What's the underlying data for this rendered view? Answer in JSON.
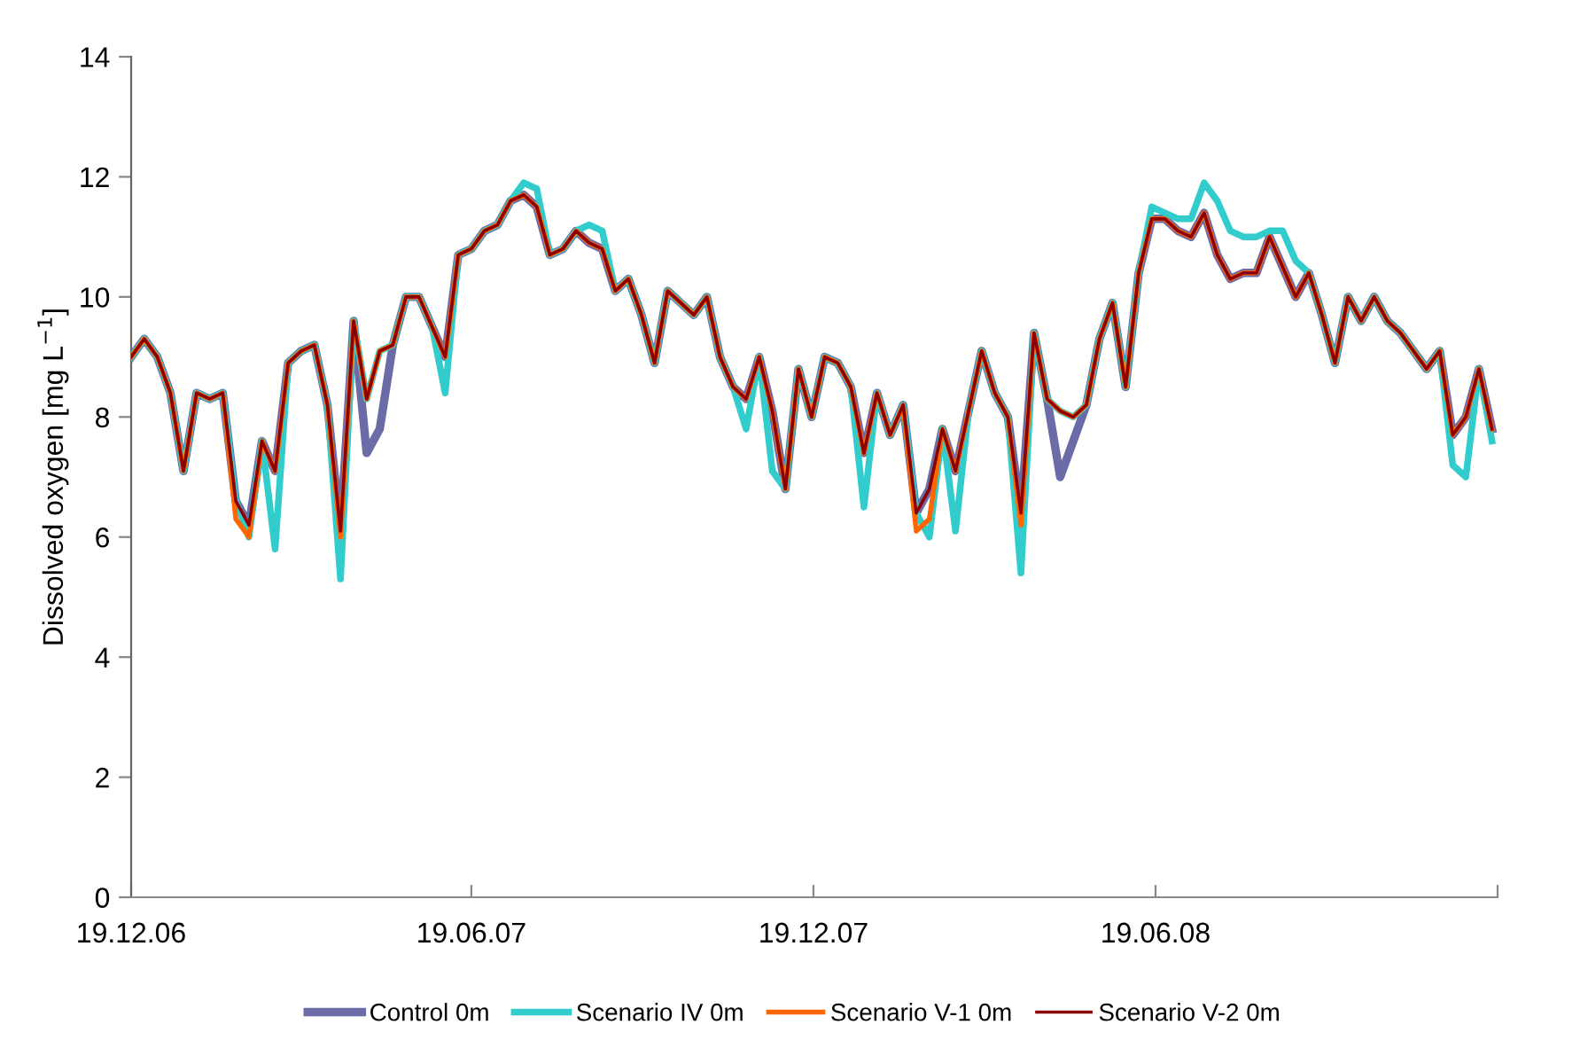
{
  "chart_data": {
    "type": "line",
    "ylabel": "Dissolved oxygen [mg L$^{−1}$]",
    "x": [
      "2006-12-19",
      "2006-12-26",
      "2007-01-02",
      "2007-01-09",
      "2007-01-16",
      "2007-01-23",
      "2007-01-30",
      "2007-02-06",
      "2007-02-13",
      "2007-02-20",
      "2007-02-27",
      "2007-03-06",
      "2007-03-13",
      "2007-03-20",
      "2007-03-27",
      "2007-04-03",
      "2007-04-10",
      "2007-04-17",
      "2007-04-24",
      "2007-05-01",
      "2007-05-08",
      "2007-05-15",
      "2007-05-22",
      "2007-05-29",
      "2007-06-05",
      "2007-06-12",
      "2007-06-19",
      "2007-06-26",
      "2007-07-03",
      "2007-07-10",
      "2007-07-17",
      "2007-07-24",
      "2007-07-31",
      "2007-08-07",
      "2007-08-14",
      "2007-08-21",
      "2007-08-28",
      "2007-09-04",
      "2007-09-11",
      "2007-09-18",
      "2007-09-25",
      "2007-10-02",
      "2007-10-09",
      "2007-10-16",
      "2007-10-23",
      "2007-10-30",
      "2007-11-06",
      "2007-11-13",
      "2007-11-20",
      "2007-11-27",
      "2007-12-04",
      "2007-12-11",
      "2007-12-18",
      "2007-12-25",
      "2008-01-01",
      "2008-01-08",
      "2008-01-15",
      "2008-01-22",
      "2008-01-29",
      "2008-02-05",
      "2008-02-12",
      "2008-02-19",
      "2008-02-26",
      "2008-03-04",
      "2008-03-11",
      "2008-03-18",
      "2008-03-25",
      "2008-04-01",
      "2008-04-08",
      "2008-04-15",
      "2008-04-22",
      "2008-04-29",
      "2008-05-06",
      "2008-05-13",
      "2008-05-20",
      "2008-05-27",
      "2008-06-03",
      "2008-06-10",
      "2008-06-17",
      "2008-06-24",
      "2008-07-01",
      "2008-07-08",
      "2008-07-15",
      "2008-07-22",
      "2008-07-29",
      "2008-08-05",
      "2008-08-12",
      "2008-08-19",
      "2008-08-26",
      "2008-09-02",
      "2008-09-09",
      "2008-09-16",
      "2008-09-23",
      "2008-09-30",
      "2008-10-07",
      "2008-10-14",
      "2008-10-21",
      "2008-10-28",
      "2008-11-04",
      "2008-11-11",
      "2008-11-18",
      "2008-11-25",
      "2008-12-02",
      "2008-12-09",
      "2008-12-16"
    ],
    "series": [
      {
        "name": "Control 0m",
        "color": "#6b6ba8",
        "values": [
          9.0,
          9.3,
          9.0,
          8.4,
          7.1,
          8.4,
          8.3,
          8.4,
          6.6,
          6.2,
          7.6,
          7.1,
          8.9,
          9.1,
          9.2,
          8.2,
          6.1,
          9.6,
          7.4,
          7.8,
          9.2,
          10.0,
          10.0,
          9.5,
          9.0,
          10.7,
          10.8,
          11.1,
          11.2,
          11.6,
          11.7,
          11.5,
          10.7,
          10.8,
          11.1,
          10.9,
          10.8,
          10.1,
          10.3,
          9.7,
          8.9,
          10.1,
          9.9,
          9.7,
          10.0,
          9.0,
          8.5,
          8.3,
          9.0,
          8.1,
          6.8,
          8.8,
          8.0,
          9.0,
          8.9,
          8.5,
          7.4,
          8.4,
          7.7,
          8.2,
          6.4,
          6.8,
          7.8,
          7.1,
          8.1,
          9.1,
          8.4,
          8.0,
          6.4,
          9.4,
          8.3,
          7.0,
          7.6,
          8.2,
          9.3,
          9.9,
          8.5,
          10.4,
          11.3,
          11.3,
          11.1,
          11.0,
          11.4,
          10.7,
          10.3,
          10.4,
          10.4,
          11.0,
          10.5,
          10.0,
          10.4,
          9.7,
          8.9,
          10.0,
          9.6,
          10.0,
          9.6,
          9.4,
          9.1,
          8.8,
          9.1,
          7.7,
          8.0,
          8.8,
          7.8
        ]
      },
      {
        "name": "Scenario IV 0m",
        "color": "#33cccc",
        "values": [
          9.0,
          9.3,
          9.0,
          8.4,
          7.1,
          8.4,
          8.3,
          8.4,
          6.6,
          6.0,
          7.6,
          5.8,
          8.9,
          9.1,
          9.2,
          8.2,
          5.3,
          9.6,
          8.3,
          9.1,
          9.2,
          10.0,
          10.0,
          9.5,
          8.4,
          10.7,
          10.8,
          11.1,
          11.2,
          11.6,
          11.9,
          11.8,
          10.7,
          10.8,
          11.1,
          11.2,
          11.1,
          10.1,
          10.3,
          9.7,
          8.9,
          10.1,
          9.9,
          9.7,
          10.0,
          9.0,
          8.5,
          7.8,
          9.0,
          7.1,
          6.8,
          8.8,
          8.0,
          9.0,
          8.9,
          8.5,
          6.5,
          8.4,
          7.7,
          8.2,
          6.4,
          6.0,
          7.8,
          6.1,
          8.1,
          9.1,
          8.4,
          8.0,
          5.4,
          9.4,
          8.3,
          8.1,
          8.0,
          8.2,
          9.3,
          9.9,
          8.5,
          10.4,
          11.5,
          11.4,
          11.3,
          11.3,
          11.9,
          11.6,
          11.1,
          11.0,
          11.0,
          11.1,
          11.1,
          10.6,
          10.4,
          9.7,
          8.9,
          10.0,
          9.6,
          10.0,
          9.6,
          9.4,
          9.1,
          8.8,
          9.1,
          7.2,
          7.0,
          8.8,
          7.6
        ]
      },
      {
        "name": "Scenario V-1 0m",
        "color": "#ff6600",
        "values": [
          9.0,
          9.3,
          9.0,
          8.4,
          7.1,
          8.4,
          8.3,
          8.4,
          6.3,
          6.0,
          7.6,
          7.1,
          8.9,
          9.1,
          9.2,
          8.2,
          6.0,
          9.6,
          8.3,
          9.1,
          9.2,
          10.0,
          10.0,
          9.5,
          9.0,
          10.7,
          10.8,
          11.1,
          11.2,
          11.6,
          11.7,
          11.5,
          10.7,
          10.8,
          11.1,
          10.9,
          10.8,
          10.1,
          10.3,
          9.7,
          8.9,
          10.1,
          9.9,
          9.7,
          10.0,
          9.0,
          8.5,
          8.3,
          9.0,
          8.1,
          6.8,
          8.8,
          8.0,
          9.0,
          8.9,
          8.5,
          7.4,
          8.4,
          7.7,
          8.2,
          6.1,
          6.3,
          7.8,
          7.1,
          8.1,
          9.1,
          8.4,
          8.0,
          6.2,
          9.4,
          8.3,
          8.1,
          8.0,
          8.2,
          9.3,
          9.9,
          8.5,
          10.4,
          11.3,
          11.3,
          11.1,
          11.0,
          11.4,
          10.7,
          10.3,
          10.4,
          10.4,
          11.0,
          10.5,
          10.0,
          10.4,
          9.7,
          8.9,
          10.0,
          9.6,
          10.0,
          9.6,
          9.4,
          9.1,
          8.8,
          9.1,
          7.7,
          8.0,
          8.8,
          7.8
        ]
      },
      {
        "name": "Scenario V-2 0m",
        "color": "#8b0000",
        "values": [
          9.0,
          9.3,
          9.0,
          8.4,
          7.1,
          8.4,
          8.3,
          8.4,
          6.6,
          6.2,
          7.6,
          7.1,
          8.9,
          9.1,
          9.2,
          8.2,
          6.1,
          9.6,
          8.3,
          9.1,
          9.2,
          10.0,
          10.0,
          9.5,
          9.0,
          10.7,
          10.8,
          11.1,
          11.2,
          11.6,
          11.7,
          11.5,
          10.7,
          10.8,
          11.1,
          10.9,
          10.8,
          10.1,
          10.3,
          9.7,
          8.9,
          10.1,
          9.9,
          9.7,
          10.0,
          9.0,
          8.5,
          8.3,
          9.0,
          8.1,
          6.8,
          8.8,
          8.0,
          9.0,
          8.9,
          8.5,
          7.4,
          8.4,
          7.7,
          8.2,
          6.4,
          6.8,
          7.8,
          7.1,
          8.1,
          9.1,
          8.4,
          8.0,
          6.4,
          9.4,
          8.3,
          8.1,
          8.0,
          8.2,
          9.3,
          9.9,
          8.5,
          10.4,
          11.3,
          11.3,
          11.1,
          11.0,
          11.4,
          10.7,
          10.3,
          10.4,
          10.4,
          11.0,
          10.5,
          10.0,
          10.4,
          9.7,
          8.9,
          10.0,
          9.6,
          10.0,
          9.6,
          9.4,
          9.1,
          8.8,
          9.1,
          7.7,
          8.0,
          8.8,
          7.8
        ]
      }
    ],
    "xlim": [
      "2006-12-19",
      "2008-12-19"
    ],
    "xticks": [
      {
        "value": "2006-12-19",
        "label": "19.12.06"
      },
      {
        "value": "2007-06-19",
        "label": "19.06.07"
      },
      {
        "value": "2007-12-19",
        "label": "19.12.07"
      },
      {
        "value": "2008-06-19",
        "label": "19.06.08"
      },
      {
        "value": "2008-12-19",
        "label": null
      }
    ],
    "ylim": [
      0,
      14
    ],
    "yticks": [
      0,
      2,
      4,
      6,
      8,
      10,
      12,
      14
    ],
    "grid": false,
    "legend": "bottom",
    "marker": "none",
    "line_style": "solid"
  }
}
